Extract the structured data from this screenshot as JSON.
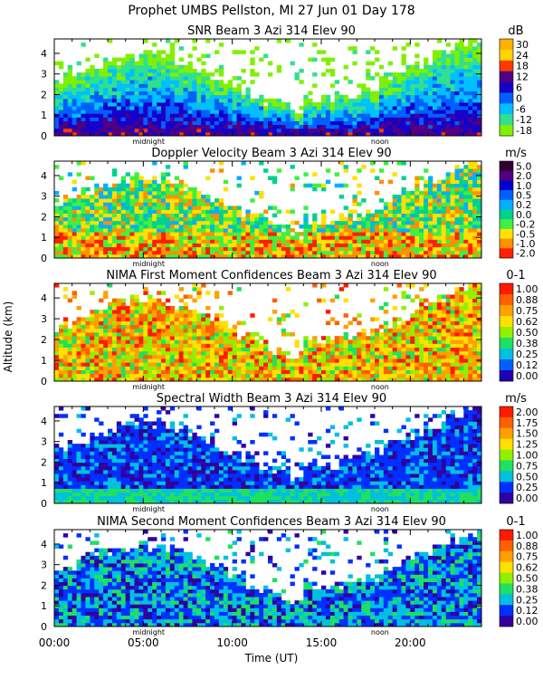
{
  "header": {
    "line1": "Prophet  UMBS Pellston, MI  27 Jun 01 Day 178"
  },
  "y_axis_label": "Altitude (km)",
  "x_axis": {
    "label": "Time (UT)",
    "tick_labels": [
      "00:00",
      "05:00",
      "10:00",
      "15:00",
      "20:00"
    ],
    "tick_hours": [
      0,
      5,
      10,
      15,
      20
    ],
    "range_hours": [
      0,
      24
    ],
    "midnight_label": "midnight",
    "noon_label": "noon",
    "midnight_hour": 5.3,
    "noon_hour": 18.3
  },
  "chart_data": [
    {
      "type": "heatmap",
      "title": "SNR Beam 3 Azi 314 Elev 90",
      "unit": "dB",
      "xlabel": "",
      "ylabel": "Altitude (km)",
      "xlim": [
        0,
        24
      ],
      "ylim": [
        0,
        4.7
      ],
      "y_ticks": [
        0,
        1,
        2,
        3,
        4
      ],
      "colorbar_labels": [
        "30",
        "24",
        "18",
        "12",
        "6",
        "0",
        "-6",
        "-12",
        "-18"
      ],
      "colorbar_colors": [
        "#ffb000",
        "#ffd400",
        "#ff3a00",
        "#500080",
        "#1800c8",
        "#0060ff",
        "#00c0ff",
        "#30e090",
        "#80f000"
      ]
    },
    {
      "type": "heatmap",
      "title": "Doppler Velocity Beam 3 Azi 314 Elev 90",
      "unit": "m/s",
      "xlabel": "",
      "ylabel": "Altitude (km)",
      "xlim": [
        0,
        24
      ],
      "ylim": [
        0,
        4.7
      ],
      "y_ticks": [
        0,
        1,
        2,
        3,
        4
      ],
      "colorbar_labels": [
        "5.0",
        "2.0",
        "1.0",
        "0.5",
        "0.2",
        "0.0",
        "-0.2",
        "-0.5",
        "-1.0",
        "-2.0"
      ],
      "colorbar_colors": [
        "#300030",
        "#500080",
        "#0000d0",
        "#0060ff",
        "#00b0ff",
        "#00d090",
        "#40f040",
        "#ffe000",
        "#ff9000",
        "#ff2000"
      ]
    },
    {
      "type": "heatmap",
      "title": "NIMA First Moment Confidences Beam 3 Azi 314 Elev 90",
      "unit": "0-1",
      "xlabel": "",
      "ylabel": "Altitude (km)",
      "xlim": [
        0,
        24
      ],
      "ylim": [
        0,
        4.7
      ],
      "y_ticks": [
        0,
        1,
        2,
        3,
        4
      ],
      "colorbar_labels": [
        "1.00",
        "0.88",
        "0.75",
        "0.62",
        "0.50",
        "0.38",
        "0.25",
        "0.12",
        "0.00"
      ],
      "colorbar_colors": [
        "#ff1a00",
        "#ff6000",
        "#ffa000",
        "#ffe000",
        "#90f000",
        "#20e060",
        "#00c0e0",
        "#0060ff",
        "#2000b0"
      ]
    },
    {
      "type": "heatmap",
      "title": "Spectral Width Beam 3 Azi 314 Elev 90",
      "unit": "m/s",
      "xlabel": "",
      "ylabel": "Altitude (km)",
      "xlim": [
        0,
        24
      ],
      "ylim": [
        0,
        4.7
      ],
      "y_ticks": [
        0,
        1,
        2,
        3,
        4
      ],
      "colorbar_labels": [
        "2.00",
        "1.75",
        "1.50",
        "1.25",
        "1.00",
        "0.75",
        "0.50",
        "0.25",
        "0.00"
      ],
      "colorbar_colors": [
        "#ff1a00",
        "#ff6000",
        "#ffa000",
        "#ffe000",
        "#90f000",
        "#20e060",
        "#00c0e0",
        "#0030ff",
        "#3000a0"
      ]
    },
    {
      "type": "heatmap",
      "title": "NIMA Second Moment Confidences Beam 3 Azi 314 Elev 90",
      "unit": "0-1",
      "xlabel": "Time (UT)",
      "ylabel": "Altitude (km)",
      "xlim": [
        0,
        24
      ],
      "ylim": [
        0,
        4.7
      ],
      "y_ticks": [
        0,
        1,
        2,
        3,
        4
      ],
      "colorbar_labels": [
        "1.00",
        "0.88",
        "0.75",
        "0.62",
        "0.50",
        "0.38",
        "0.25",
        "0.12",
        "0.00"
      ],
      "colorbar_colors": [
        "#ff1a00",
        "#ff6000",
        "#ffa000",
        "#ffe000",
        "#90f000",
        "#20e060",
        "#00c0e0",
        "#0030ff",
        "#3000a0"
      ]
    }
  ]
}
